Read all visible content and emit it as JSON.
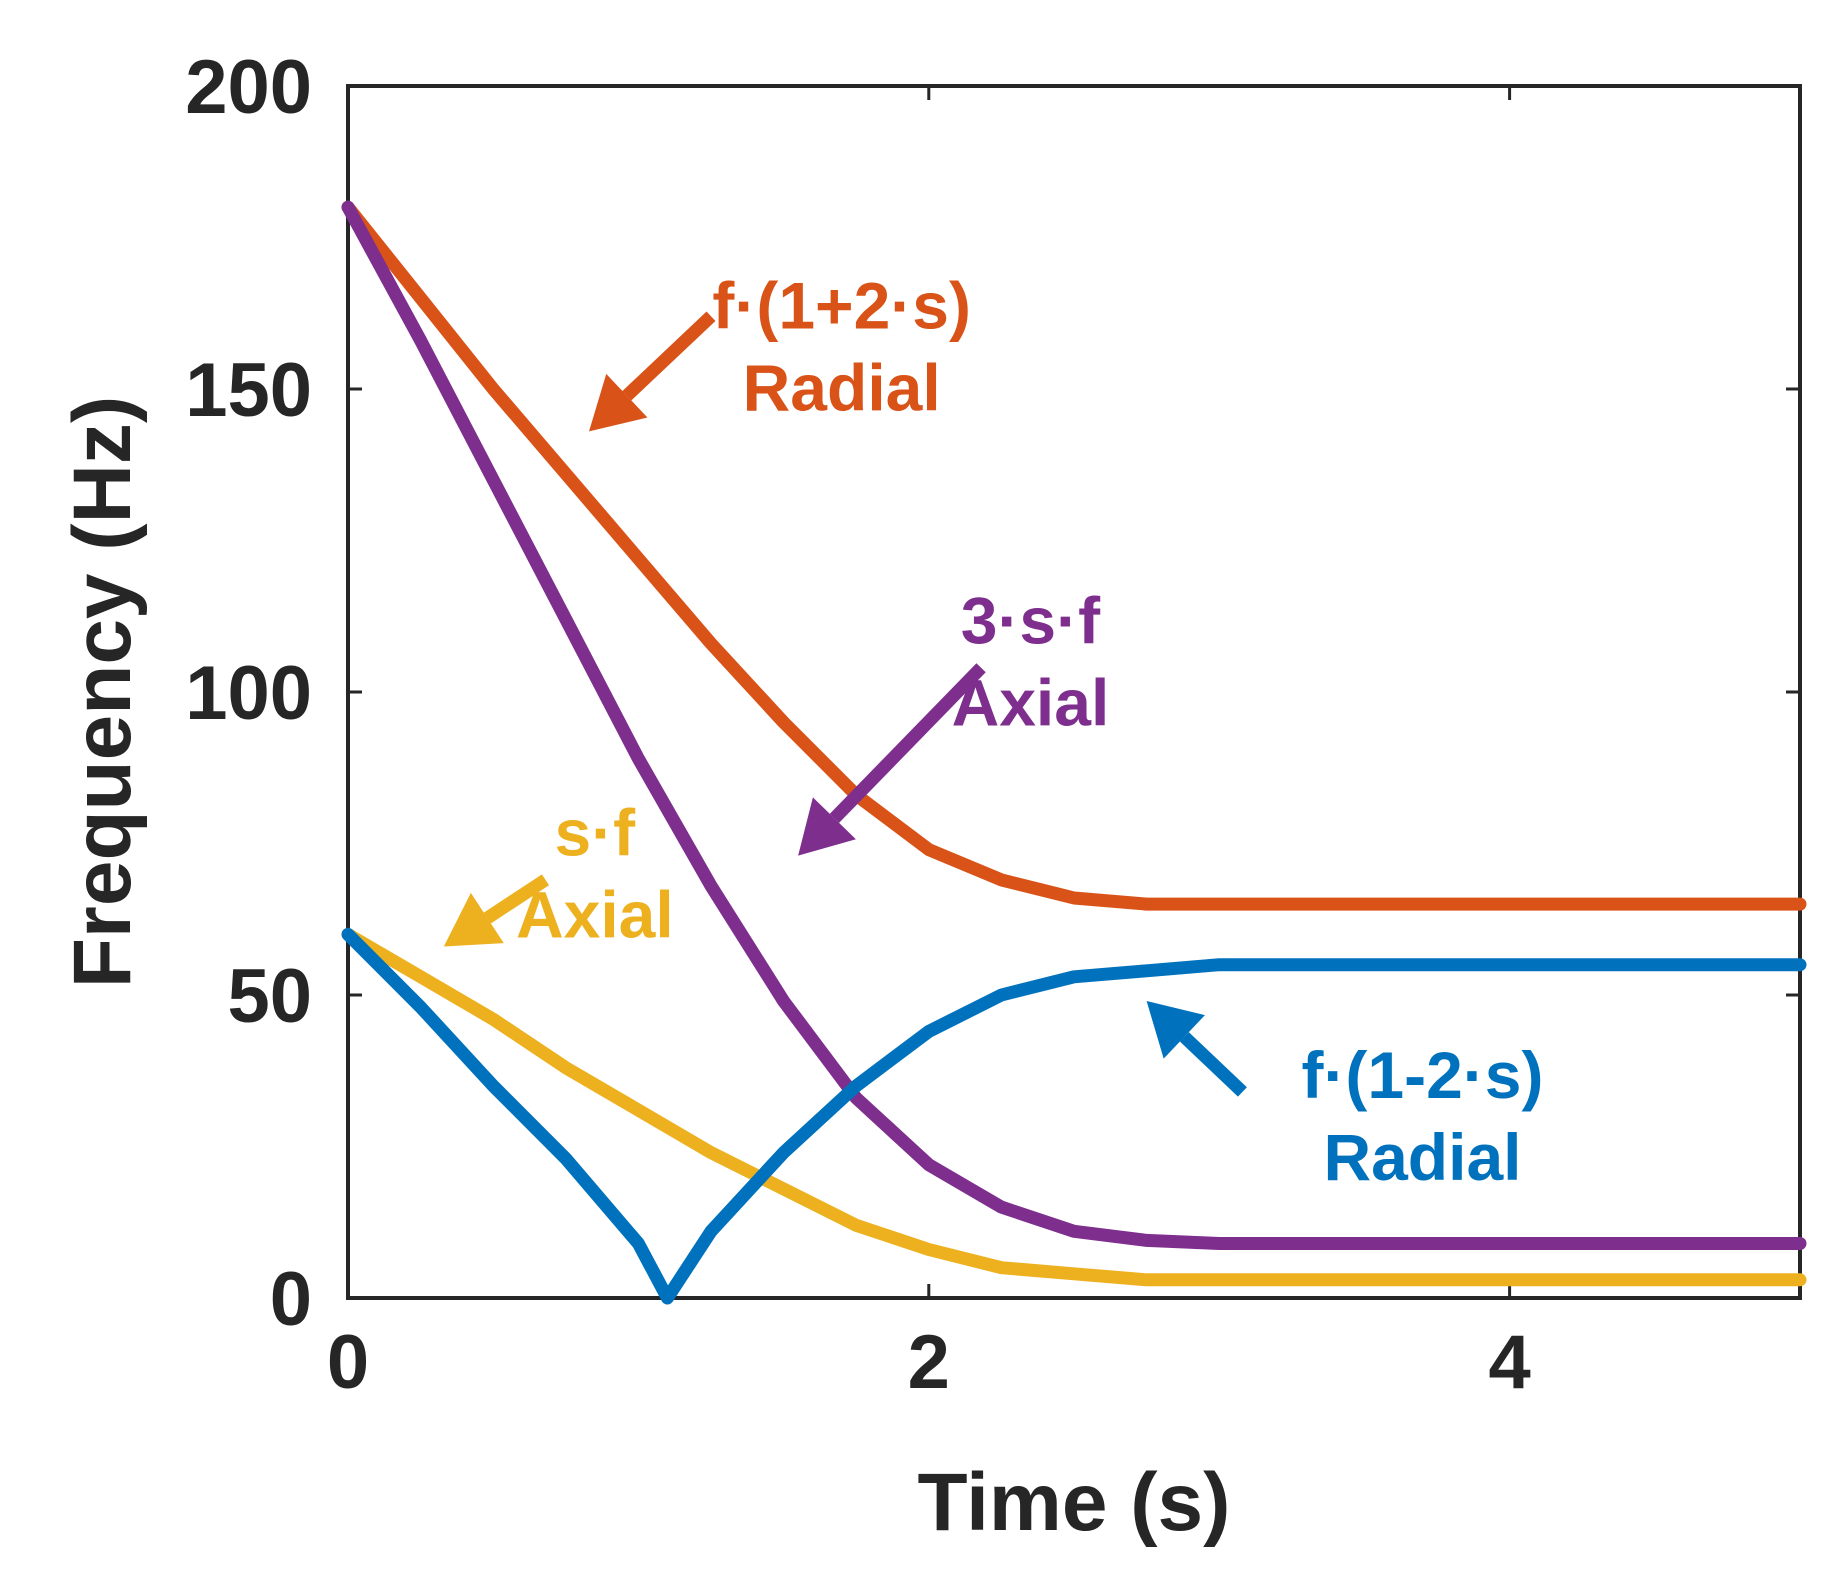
{
  "chart_data": {
    "type": "line",
    "title": "",
    "xlabel": "Time (s)",
    "ylabel": "Frequency (Hz)",
    "xlim": [
      0,
      5
    ],
    "ylim": [
      0,
      200
    ],
    "xticks": [
      0,
      2,
      4
    ],
    "yticks": [
      0,
      50,
      100,
      150,
      200
    ],
    "xtick_labels": [
      "0",
      "2",
      "4"
    ],
    "ytick_labels": [
      "0",
      "50",
      "100",
      "150",
      "200"
    ],
    "grid": false,
    "series": [
      {
        "name": "f·(1+2·s) Radial",
        "color": "#D95319",
        "x": [
          0,
          0.25,
          0.5,
          0.75,
          1.0,
          1.25,
          1.5,
          1.75,
          2.0,
          2.25,
          2.5,
          2.75,
          3.0,
          3.5,
          4.0,
          4.5,
          5.0
        ],
        "y": [
          180,
          165,
          150,
          136,
          122,
          108,
          95,
          83,
          74,
          69,
          66,
          65,
          65,
          65,
          65,
          65,
          65
        ]
      },
      {
        "name": "3·s·f Axial",
        "color": "#7E2F8E",
        "x": [
          0,
          0.25,
          0.5,
          0.75,
          1.0,
          1.25,
          1.5,
          1.75,
          2.0,
          2.25,
          2.5,
          2.75,
          3.0,
          3.5,
          4.0,
          4.5,
          5.0
        ],
        "y": [
          180,
          158,
          135,
          112,
          89,
          68,
          49,
          33,
          22,
          15,
          11,
          9.5,
          9,
          9,
          9,
          9,
          9
        ]
      },
      {
        "name": "s·f Axial",
        "color": "#EDB120",
        "x": [
          0,
          0.25,
          0.5,
          0.75,
          1.0,
          1.25,
          1.5,
          1.75,
          2.0,
          2.25,
          2.5,
          2.75,
          3.0,
          3.5,
          4.0,
          4.5,
          5.0
        ],
        "y": [
          60,
          53,
          46,
          38,
          31,
          24,
          18,
          12,
          8,
          5,
          4,
          3,
          3,
          3,
          3,
          3,
          3
        ]
      },
      {
        "name": "f·(1-2·s) Radial",
        "color": "#0072BD",
        "x": [
          0,
          0.25,
          0.5,
          0.75,
          1.0,
          1.1,
          1.25,
          1.5,
          1.75,
          2.0,
          2.25,
          2.5,
          2.75,
          3.0,
          3.5,
          4.0,
          4.5,
          5.0
        ],
        "y": [
          60,
          48,
          35,
          23,
          9,
          0,
          11,
          24,
          35,
          44,
          50,
          53,
          54,
          55,
          55,
          55,
          55,
          55
        ]
      }
    ],
    "annotations": [
      {
        "series": 0,
        "lines": [
          "f·(1+2·s)",
          "Radial"
        ],
        "text_at": [
          1.7,
          160
        ],
        "arrow_from": [
          1.25,
          162
        ],
        "arrow_to": [
          0.83,
          143
        ]
      },
      {
        "series": 1,
        "lines": [
          "3·s·f",
          "Axial"
        ],
        "text_at": [
          2.35,
          108
        ],
        "arrow_from": [
          2.18,
          104
        ],
        "arrow_to": [
          1.55,
          73
        ]
      },
      {
        "series": 2,
        "lines": [
          "s·f",
          "Axial"
        ],
        "text_at": [
          0.85,
          73
        ],
        "arrow_from": [
          0.68,
          69
        ],
        "arrow_to": [
          0.33,
          58
        ]
      },
      {
        "series": 3,
        "lines": [
          "f·(1-2·s)",
          "Radial"
        ],
        "text_at": [
          3.7,
          33
        ],
        "arrow_from": [
          3.08,
          34
        ],
        "arrow_to": [
          2.75,
          49
        ]
      }
    ]
  }
}
